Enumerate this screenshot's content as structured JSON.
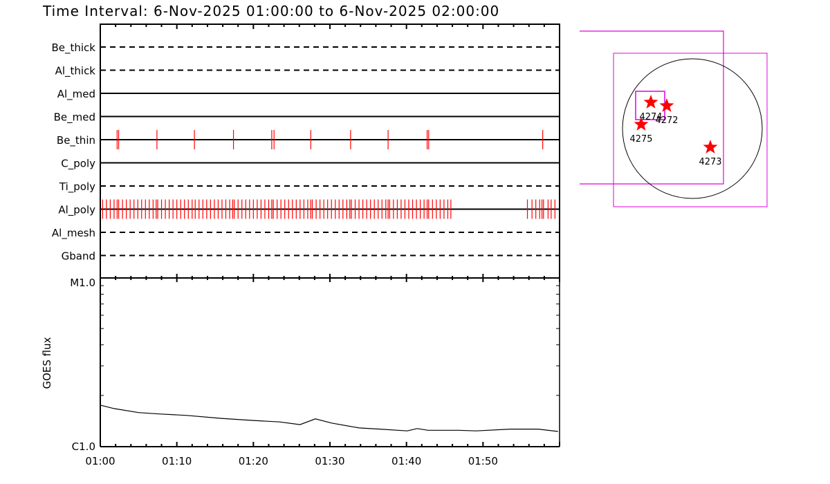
{
  "title": "Time Interval:  6-Nov-2025 01:00:00 to  6-Nov-2025 02:00:00",
  "chart_data": [
    {
      "type": "timeline",
      "x_range_minutes_after": "01:00",
      "xlim": [
        0,
        60
      ],
      "filters": [
        {
          "name": "Be_thick",
          "style": "dashed",
          "times": []
        },
        {
          "name": "Al_thick",
          "style": "dashed",
          "times": []
        },
        {
          "name": "Al_med",
          "style": "solid",
          "times": []
        },
        {
          "name": "Be_med",
          "style": "solid",
          "times": []
        },
        {
          "name": "Be_thin",
          "style": "solid",
          "times": [
            2.2,
            2.4,
            7.4,
            12.3,
            17.4,
            22.4,
            22.7,
            27.5,
            32.7,
            37.6,
            42.7,
            42.9,
            57.8
          ]
        },
        {
          "name": "C_poly",
          "style": "solid",
          "times": []
        },
        {
          "name": "Ti_poly",
          "style": "dashed",
          "times": []
        },
        {
          "name": "Al_poly",
          "style": "solid",
          "times": [
            0.3,
            0.8,
            1.3,
            1.8,
            2.2,
            2.4,
            2.9,
            3.4,
            3.9,
            4.4,
            4.9,
            5.4,
            5.9,
            6.4,
            6.9,
            7.3,
            7.5,
            8.0,
            8.5,
            9.0,
            9.5,
            10.0,
            10.5,
            11.0,
            11.5,
            12.0,
            12.4,
            12.9,
            13.4,
            13.9,
            14.4,
            14.9,
            15.4,
            15.9,
            16.4,
            16.9,
            17.3,
            17.5,
            18.0,
            18.5,
            19.0,
            19.5,
            20.0,
            20.5,
            21.0,
            21.5,
            22.0,
            22.4,
            22.6,
            23.1,
            23.6,
            24.1,
            24.6,
            25.1,
            25.6,
            26.1,
            26.6,
            27.1,
            27.5,
            27.7,
            28.2,
            28.7,
            29.2,
            29.7,
            30.2,
            30.7,
            31.2,
            31.7,
            32.2,
            32.6,
            32.8,
            33.3,
            33.8,
            34.3,
            34.8,
            35.3,
            35.8,
            36.3,
            36.8,
            37.3,
            37.6,
            37.8,
            38.3,
            38.8,
            39.3,
            39.8,
            40.3,
            40.8,
            41.3,
            41.8,
            42.3,
            42.7,
            42.9,
            43.4,
            43.9,
            44.4,
            44.9,
            45.4,
            45.8,
            55.8,
            56.4,
            56.9,
            57.4,
            57.7,
            57.9,
            58.5,
            58.9,
            59.4
          ]
        },
        {
          "name": "Al_mesh",
          "style": "dashed",
          "times": []
        },
        {
          "name": "Gband",
          "style": "dashed",
          "times": []
        }
      ],
      "mark_color": "#ff0000"
    },
    {
      "type": "line",
      "ylabel": "GOES flux",
      "yscale": "log",
      "ylim": [
        1e-06,
        1e-05
      ],
      "ytick_labels": [
        "C1.0",
        "M1.0"
      ],
      "xtick_labels": [
        "01:00",
        "01:10",
        "01:20",
        "01:30",
        "01:40",
        "01:50"
      ],
      "xlim": [
        0,
        60
      ],
      "x_minutes": [
        0,
        1.8,
        5,
        7.7,
        11.3,
        15.8,
        19.8,
        23.4,
        26.1,
        28.1,
        30.2,
        33.8,
        36.5,
        40.1,
        41.4,
        42.8,
        46.8,
        49.1,
        53.6,
        57.2,
        59.8
      ],
      "flux": [
        1.75e-06,
        1.67e-06,
        1.58e-06,
        1.55e-06,
        1.52e-06,
        1.46e-06,
        1.42e-06,
        1.39e-06,
        1.34e-06,
        1.45e-06,
        1.37e-06,
        1.28e-06,
        1.26e-06,
        1.23e-06,
        1.27e-06,
        1.24e-06,
        1.24e-06,
        1.23e-06,
        1.26e-06,
        1.26e-06,
        1.22e-06
      ]
    }
  ],
  "sun_map": {
    "box_color": "#e000e0",
    "star_color": "#ff0000",
    "active_regions": [
      {
        "label": "4274"
      },
      {
        "label": "4272"
      },
      {
        "label": "4275"
      },
      {
        "label": "4273"
      }
    ]
  }
}
